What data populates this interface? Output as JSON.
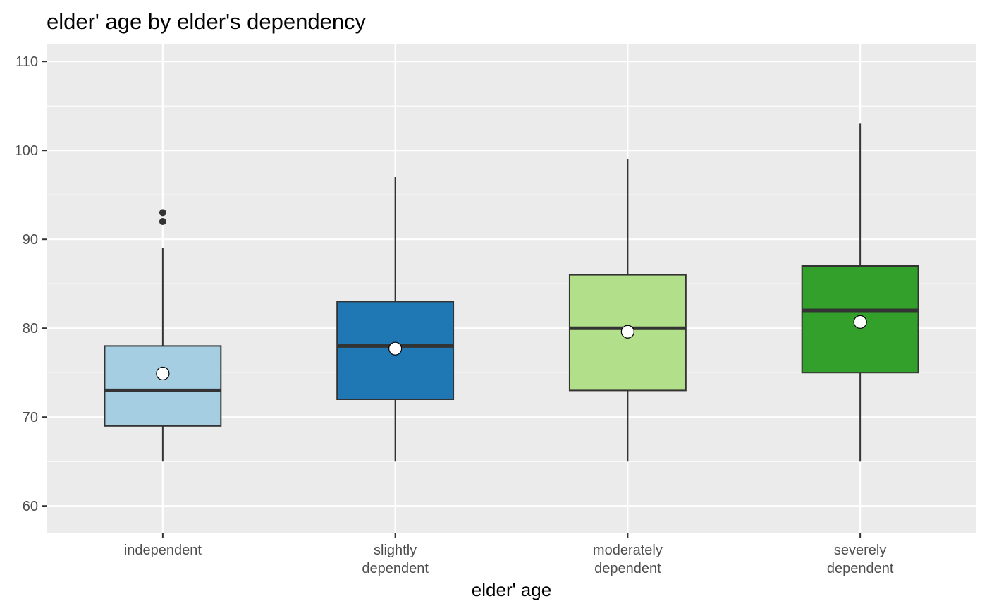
{
  "chart_data": {
    "type": "boxplot",
    "title": "elder' age by elder's dependency",
    "xlabel": "elder' age",
    "ylabel": "",
    "ylim": [
      57,
      112
    ],
    "y_ticks": [
      60,
      70,
      80,
      90,
      100,
      110
    ],
    "grid": true,
    "legend": "none",
    "categories": [
      {
        "lines": [
          "independent"
        ]
      },
      {
        "lines": [
          "slightly",
          "dependent"
        ]
      },
      {
        "lines": [
          "moderately",
          "dependent"
        ]
      },
      {
        "lines": [
          "severely",
          "dependent"
        ]
      }
    ],
    "boxes": [
      {
        "category": "independent",
        "whisker_low": 65,
        "q1": 69,
        "median": 73,
        "q3": 78,
        "whisker_high": 89,
        "mean": 74.9,
        "outliers": [
          92,
          93
        ],
        "color": "#A6CEE3"
      },
      {
        "category": "slightly dependent",
        "whisker_low": 65,
        "q1": 72,
        "median": 78,
        "q3": 83,
        "whisker_high": 97,
        "mean": 77.7,
        "outliers": [],
        "color": "#1F78B4"
      },
      {
        "category": "moderately dependent",
        "whisker_low": 65,
        "q1": 73,
        "median": 80,
        "q3": 86,
        "whisker_high": 99,
        "mean": 79.6,
        "outliers": [],
        "color": "#B2DF8A"
      },
      {
        "category": "severely dependent",
        "whisker_low": 65,
        "q1": 75,
        "median": 82,
        "q3": 87,
        "whisker_high": 103,
        "mean": 80.7,
        "outliers": [],
        "color": "#33A02C"
      }
    ],
    "colors": {
      "panel_background": "#EBEBEB",
      "grid": "#FFFFFF",
      "box_outline": "#333333",
      "mean_marker": "#FFFFFF"
    }
  }
}
